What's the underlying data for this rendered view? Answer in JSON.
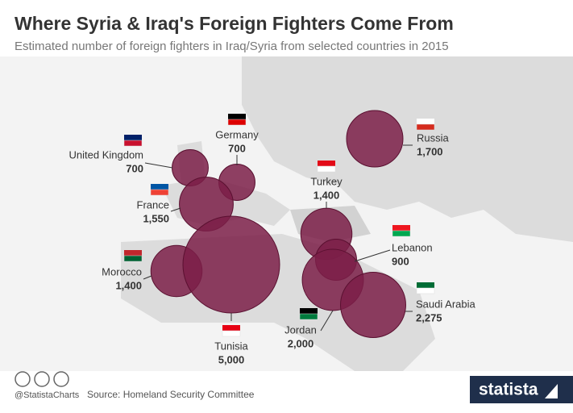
{
  "chart_data": {
    "type": "bubble_map",
    "title": "Where Syria & Iraq's Foreign Fighters Come From",
    "subtitle": "Estimated number of foreign fighters in Iraq/Syria from selected countries in 2015",
    "categories": [
      "United Kingdom",
      "Germany",
      "France",
      "Morocco",
      "Tunisia",
      "Turkey",
      "Lebanon",
      "Jordan",
      "Saudi Arabia",
      "Russia"
    ],
    "values": [
      700,
      700,
      1550,
      1400,
      5000,
      1400,
      900,
      2000,
      2275,
      1700
    ],
    "value_labels": [
      "700",
      "700",
      "1,550",
      "1,400",
      "5,000",
      "1,400",
      "900",
      "2,000",
      "2,275",
      "1,700"
    ],
    "color": "#7b1e48"
  },
  "footer": {
    "handle": "@StatistaCharts",
    "source": "Source: Homeland Security Committee",
    "brand": "statista"
  }
}
